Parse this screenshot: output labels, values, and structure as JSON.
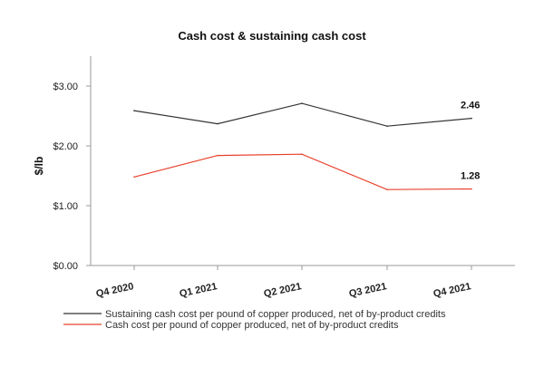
{
  "chart_data": {
    "type": "line",
    "title": "Cash cost & sustaining cash cost",
    "xlabel": "",
    "ylabel": "$/lb",
    "categories": [
      "Q4 2020",
      "Q1 2021",
      "Q2 2021",
      "Q3 2021",
      "Q4 2021"
    ],
    "ylim": [
      0,
      3.5
    ],
    "yticks": [
      0,
      1,
      2,
      3
    ],
    "ytick_labels": [
      "$0.00",
      "$1.00",
      "$2.00",
      "$3.00"
    ],
    "grid": false,
    "legend_position": "bottom",
    "series": [
      {
        "name": "Sustaining cash cost per pound of copper produced, net of by-product credits",
        "color": "#333333",
        "values": [
          2.59,
          2.37,
          2.71,
          2.33,
          2.46
        ],
        "end_label": "2.46"
      },
      {
        "name": "Cash cost per pound of copper produced, net of by-product credits",
        "color": "#e8412c",
        "values": [
          1.48,
          1.84,
          1.86,
          1.27,
          1.28
        ],
        "end_label": "1.28"
      }
    ]
  }
}
